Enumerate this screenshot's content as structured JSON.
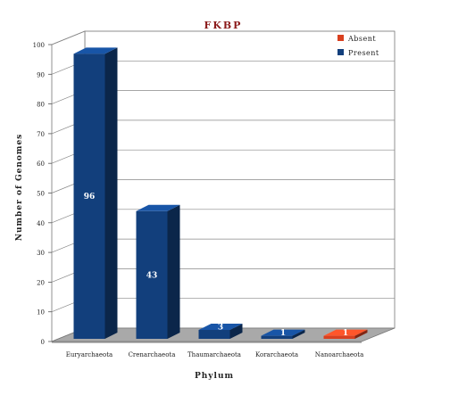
{
  "chart_data": {
    "type": "bar3d",
    "title": "FKBP",
    "x_label": "Phylum",
    "y_label": "Number of Genomes",
    "categories": [
      "Euryarchaeota",
      "Crenarchaeota",
      "Thaumarchaeota",
      "Korarchaeota",
      "Nanoarchaeota"
    ],
    "series": [
      {
        "name": "Absent",
        "color": "#d9401f",
        "values": [
          null,
          null,
          null,
          null,
          1
        ]
      },
      {
        "name": "Present",
        "color": "#123f7c",
        "values": [
          96,
          43,
          3,
          1,
          null
        ]
      }
    ],
    "ylim": [
      0,
      100
    ],
    "yticks": [
      0,
      10,
      20,
      30,
      40,
      50,
      60,
      70,
      80,
      90,
      100
    ],
    "grid": true,
    "legend": "top-right"
  }
}
